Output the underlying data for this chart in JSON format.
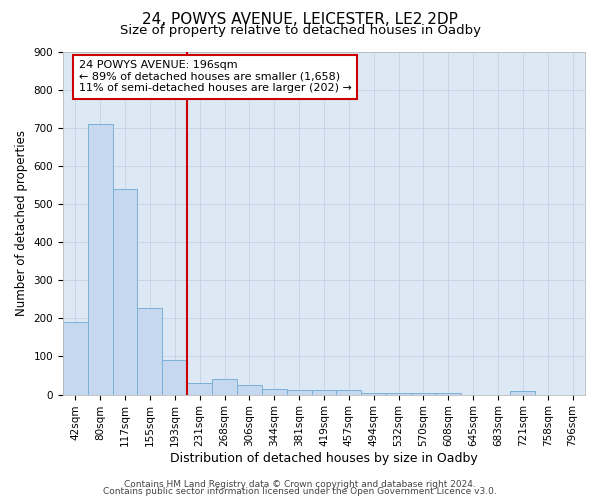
{
  "title": "24, POWYS AVENUE, LEICESTER, LE2 2DP",
  "subtitle": "Size of property relative to detached houses in Oadby",
  "xlabel": "Distribution of detached houses by size in Oadby",
  "ylabel": "Number of detached properties",
  "categories": [
    "42sqm",
    "80sqm",
    "117sqm",
    "155sqm",
    "193sqm",
    "231sqm",
    "268sqm",
    "306sqm",
    "344sqm",
    "381sqm",
    "419sqm",
    "457sqm",
    "494sqm",
    "532sqm",
    "570sqm",
    "608sqm",
    "645sqm",
    "683sqm",
    "721sqm",
    "758sqm",
    "796sqm"
  ],
  "values": [
    190,
    710,
    540,
    226,
    90,
    31,
    40,
    26,
    15,
    13,
    13,
    13,
    5,
    5,
    5,
    5,
    0,
    0,
    10,
    0,
    0
  ],
  "bar_color": "#c5d8f0",
  "bar_edge_color": "#7ab0d8",
  "vline_x_index": 4,
  "vline_color": "#cc0000",
  "annotation_text_line1": "24 POWYS AVENUE: 196sqm",
  "annotation_text_line2": "← 89% of detached houses are smaller (1,658)",
  "annotation_text_line3": "11% of semi-detached houses are larger (202) →",
  "annotation_box_edgecolor": "#cc0000",
  "ylim": [
    0,
    900
  ],
  "yticks": [
    0,
    100,
    200,
    300,
    400,
    500,
    600,
    700,
    800,
    900
  ],
  "grid_color": "#c8d4e8",
  "background_color": "#dde8f5",
  "footer_line1": "Contains HM Land Registry data © Crown copyright and database right 2024.",
  "footer_line2": "Contains public sector information licensed under the Open Government Licence v3.0.",
  "title_fontsize": 11,
  "subtitle_fontsize": 9.5,
  "xlabel_fontsize": 9,
  "ylabel_fontsize": 8.5,
  "tick_fontsize": 7.5,
  "annotation_fontsize": 8,
  "footer_fontsize": 6.5
}
